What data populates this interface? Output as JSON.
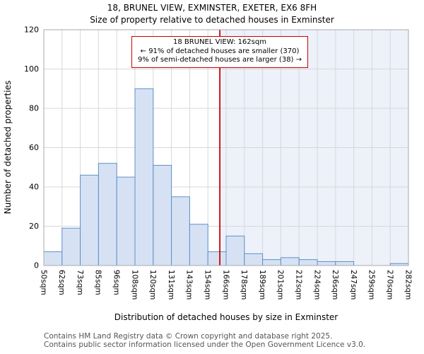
{
  "title": {
    "line1": "18, BRUNEL VIEW, EXMINSTER, EXETER, EX6 8FH",
    "line2": "Size of property relative to detached houses in Exminster"
  },
  "annotation": {
    "line1": "18 BRUNEL VIEW: 162sqm",
    "line2": "← 91% of detached houses are smaller (370)",
    "line3": "9% of semi-detached houses are larger (38) →"
  },
  "footer": {
    "line1": "Contains HM Land Registry data © Crown copyright and database right 2025.",
    "line2": "Contains public sector information licensed under the Open Government Licence v3.0."
  },
  "chart_data": {
    "type": "bar",
    "title": "18, BRUNEL VIEW, EXMINSTER, EXETER, EX6 8FH — Size of property relative to detached houses in Exminster",
    "xlabel": "Distribution of detached houses by size in Exminster",
    "ylabel": "Number of detached properties",
    "bin_edges_sqm": [
      50,
      62,
      73,
      85,
      96,
      108,
      120,
      131,
      143,
      154,
      166,
      178,
      189,
      201,
      212,
      224,
      236,
      247,
      259,
      270,
      282
    ],
    "bin_labels": [
      "50sqm",
      "62sqm",
      "73sqm",
      "85sqm",
      "96sqm",
      "108sqm",
      "120sqm",
      "131sqm",
      "143sqm",
      "154sqm",
      "166sqm",
      "178sqm",
      "189sqm",
      "201sqm",
      "212sqm",
      "224sqm",
      "236sqm",
      "247sqm",
      "259sqm",
      "270sqm",
      "282sqm"
    ],
    "values": [
      7,
      19,
      46,
      52,
      45,
      90,
      51,
      35,
      21,
      7,
      15,
      6,
      3,
      4,
      3,
      2,
      2,
      0,
      0,
      1
    ],
    "marker_value_sqm": 162,
    "ylim": [
      0,
      120
    ],
    "yticks": [
      0,
      20,
      40,
      60,
      80,
      100,
      120
    ],
    "grid": true,
    "legend": "none",
    "colors": {
      "bar_fill": "#d6e2f4",
      "bar_stroke": "#6090c8",
      "marker_line": "#cc0000",
      "shade_right": "#dde6f5",
      "grid": "#d8d8d8",
      "spine": "#aaaaaa"
    }
  }
}
